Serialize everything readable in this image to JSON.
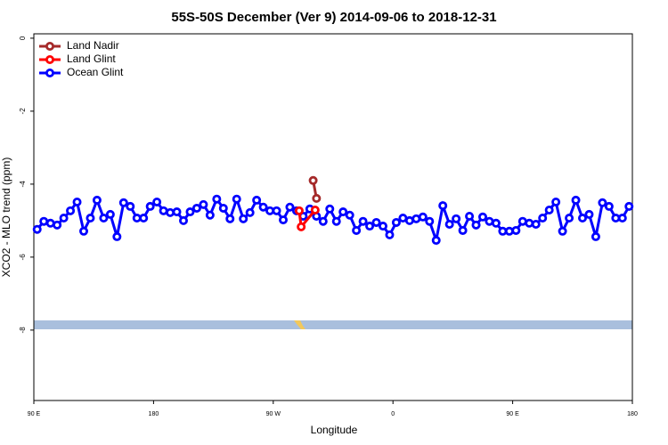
{
  "chart_data": {
    "type": "line",
    "title": "55S-50S December (Ver 9)   2014-09-06 to 2018-12-31",
    "x_label": "Longitude",
    "y_label": "XCO2 - MLO trend (ppm)",
    "xlim": [
      90,
      540
    ],
    "ylim": [
      -9.93,
      0.12
    ],
    "xticks": [
      {
        "value": 90,
        "label": "90 E"
      },
      180,
      {
        "value": 270,
        "label": "90 W"
      },
      {
        "value": 360,
        "label": "0"
      },
      {
        "value": 450,
        "label": "90 E"
      },
      {
        "value": 540,
        "label": "180"
      }
    ],
    "yticks": [
      0,
      -2,
      -4,
      -6,
      -8
    ],
    "legend": "top-left",
    "series": [
      {
        "name": "Land Nadir",
        "color": "#a52a2a",
        "x": [
          300,
          302.5
        ],
        "values": [
          -3.9,
          -4.39
        ]
      },
      {
        "name": "Land Glint",
        "color": "#ff0000",
        "x": [
          289.5,
          291,
          301.5
        ],
        "values": [
          -4.73,
          -5.17,
          -4.71
        ]
      },
      {
        "name": "Ocean Glint",
        "color": "#0000ff",
        "x": [
          92.5,
          97.5,
          102.5,
          107.5,
          112.5,
          117.5,
          122.5,
          127.5,
          132.5,
          137.5,
          142.5,
          147.5,
          152.5,
          157.5,
          162.5,
          167.5,
          172.5,
          177.5,
          182.5,
          187.5,
          192.5,
          197.5,
          202.5,
          207.5,
          212.5,
          217.5,
          222.5,
          227.5,
          232.5,
          237.5,
          242.5,
          247.5,
          252.5,
          257.5,
          262.5,
          267.5,
          272.5,
          277.5,
          282.5,
          287.5,
          292.5,
          297.5,
          302.5,
          307.5,
          312.5,
          317.5,
          322.5,
          327.5,
          332.5,
          337.5,
          342.5,
          347.5,
          352.5,
          357.5,
          362.5,
          367.5,
          372.5,
          377.5,
          382.5,
          387.5,
          392.5,
          397.5,
          402.5,
          407.5,
          412.5,
          417.5,
          422.5,
          427.5,
          432.5,
          437.5,
          442.5,
          447.5,
          452.5,
          457.5,
          462.5,
          467.5,
          472.5,
          477.5,
          482.5,
          487.5,
          492.5,
          497.5,
          502.5,
          507.5,
          512.5,
          517.5,
          522.5,
          527.5,
          532.5,
          537.5
        ],
        "values": [
          -5.24,
          -5.02,
          -5.07,
          -5.12,
          -4.93,
          -4.73,
          -4.49,
          -5.29,
          -4.93,
          -4.44,
          -4.93,
          -4.83,
          -5.44,
          -4.51,
          -4.61,
          -4.93,
          -4.93,
          -4.61,
          -4.49,
          -4.73,
          -4.78,
          -4.76,
          -5.0,
          -4.76,
          -4.66,
          -4.56,
          -4.85,
          -4.41,
          -4.66,
          -4.95,
          -4.41,
          -4.95,
          -4.78,
          -4.44,
          -4.63,
          -4.73,
          -4.73,
          -4.98,
          -4.63,
          -4.73,
          -4.88,
          -4.68,
          -4.88,
          -5.02,
          -4.68,
          -5.02,
          -4.76,
          -4.85,
          -5.27,
          -5.02,
          -5.15,
          -5.05,
          -5.15,
          -5.39,
          -5.05,
          -4.93,
          -5.0,
          -4.95,
          -4.9,
          -5.02,
          -5.54,
          -4.59,
          -5.1,
          -4.95,
          -5.27,
          -4.88,
          -5.12,
          -4.9,
          -5.02,
          -5.07,
          -5.29,
          -5.29,
          -5.27,
          -5.02,
          -5.07,
          -5.1,
          -4.93,
          -4.71,
          -4.49,
          -5.29,
          -4.93,
          -4.44,
          -4.93,
          -4.83,
          -5.44,
          -4.51,
          -4.61,
          -4.93,
          -4.93,
          -4.61
        ]
      }
    ]
  }
}
